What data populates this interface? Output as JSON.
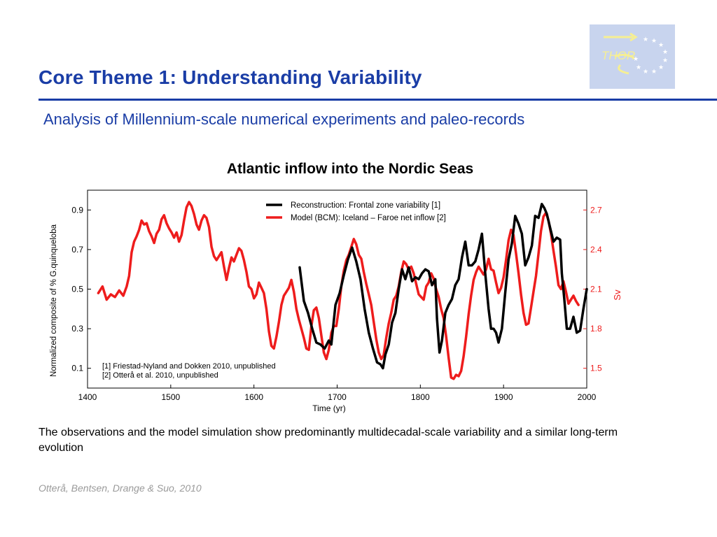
{
  "slide": {
    "title": "Core Theme 1: Understanding Variability",
    "subtitle": "Analysis of Millennium-scale numerical experiments and paleo-records",
    "logo_text": "THOR",
    "caption": "The observations and the model simulation show predominantly multidecadal-scale variability and a similar long-term evolution",
    "credit": "Otterå, Bentsen, Drange & Suo, 2010",
    "colors": {
      "title": "#1a3da6",
      "logo_bg": "#c8d4ee",
      "logo_ink": "#f6ef92",
      "credit": "#9a9a9a"
    }
  },
  "chart_data": {
    "type": "line",
    "title": "Atlantic inflow into the Nordic Seas",
    "xlabel": "Time (yr)",
    "ylabel": "Normalized composite of % G.quinqueloba",
    "y2label": "Sv",
    "xlim": [
      1400,
      2000
    ],
    "ylim": [
      0,
      1.0
    ],
    "y2lim": [
      1.35,
      2.85
    ],
    "xticks": [
      "1400",
      "1500",
      "1600",
      "1700",
      "1800",
      "1900",
      "2000"
    ],
    "yticks": [
      "0.1",
      "0.3",
      "0.5",
      "0.7",
      "0.9"
    ],
    "y2ticks": [
      "1.5",
      "1.8",
      "2.1",
      "2.4",
      "2.7"
    ],
    "grid": false,
    "legend_position": "top-right",
    "references": [
      "[1] Friestad-Nyland and Dokken 2010, unpublished",
      "[2] Otterå et al. 2010, unpublished"
    ],
    "series": [
      {
        "name": "Reconstruction: Frontal zone variability [1]",
        "axis": "left",
        "color": "#000000",
        "x": [
          1655,
          1660,
          1665,
          1670,
          1675,
          1680,
          1685,
          1690,
          1693,
          1698,
          1703,
          1708,
          1713,
          1718,
          1723,
          1728,
          1733,
          1738,
          1743,
          1748,
          1752,
          1755,
          1758,
          1762,
          1766,
          1770,
          1774,
          1778,
          1782,
          1786,
          1790,
          1794,
          1798,
          1802,
          1806,
          1810,
          1814,
          1818,
          1820,
          1823,
          1826,
          1830,
          1834,
          1838,
          1842,
          1846,
          1850,
          1854,
          1858,
          1862,
          1866,
          1870,
          1874,
          1878,
          1882,
          1885,
          1888,
          1891,
          1894,
          1898,
          1902,
          1906,
          1910,
          1914,
          1918,
          1922,
          1926,
          1930,
          1934,
          1938,
          1942,
          1946,
          1949,
          1952,
          1956,
          1960,
          1964,
          1968,
          1970,
          1973,
          1976,
          1980,
          1984,
          1988,
          1992,
          1996,
          2000
        ],
        "values": [
          0.61,
          0.44,
          0.38,
          0.3,
          0.23,
          0.22,
          0.2,
          0.24,
          0.22,
          0.42,
          0.48,
          0.57,
          0.65,
          0.71,
          0.64,
          0.55,
          0.4,
          0.28,
          0.2,
          0.13,
          0.12,
          0.1,
          0.17,
          0.22,
          0.33,
          0.38,
          0.5,
          0.6,
          0.55,
          0.61,
          0.54,
          0.56,
          0.55,
          0.58,
          0.6,
          0.59,
          0.52,
          0.55,
          0.35,
          0.18,
          0.24,
          0.38,
          0.42,
          0.45,
          0.52,
          0.55,
          0.66,
          0.74,
          0.62,
          0.62,
          0.64,
          0.7,
          0.78,
          0.58,
          0.4,
          0.3,
          0.3,
          0.28,
          0.23,
          0.3,
          0.48,
          0.65,
          0.73,
          0.87,
          0.83,
          0.78,
          0.62,
          0.66,
          0.72,
          0.87,
          0.86,
          0.93,
          0.91,
          0.88,
          0.81,
          0.74,
          0.76,
          0.75,
          0.58,
          0.45,
          0.3,
          0.3,
          0.36,
          0.28,
          0.29,
          0.4,
          0.5
        ]
      },
      {
        "name": "Model (BCM): Iceland – Faroe net inflow [2]",
        "axis": "right",
        "color": "#ee1c1c",
        "x": [
          1413,
          1418,
          1423,
          1428,
          1433,
          1438,
          1443,
          1447,
          1450,
          1453,
          1456,
          1459,
          1462,
          1465,
          1468,
          1471,
          1474,
          1477,
          1480,
          1483,
          1486,
          1489,
          1492,
          1495,
          1498,
          1501,
          1504,
          1507,
          1510,
          1513,
          1516,
          1519,
          1522,
          1525,
          1528,
          1531,
          1534,
          1537,
          1540,
          1543,
          1546,
          1549,
          1552,
          1555,
          1558,
          1561,
          1564,
          1567,
          1570,
          1573,
          1576,
          1579,
          1582,
          1585,
          1588,
          1591,
          1594,
          1597,
          1600,
          1603,
          1606,
          1609,
          1612,
          1615,
          1618,
          1621,
          1624,
          1627,
          1630,
          1633,
          1636,
          1639,
          1642,
          1645,
          1648,
          1651,
          1654,
          1657,
          1660,
          1663,
          1666,
          1669,
          1672,
          1675,
          1678,
          1681,
          1684,
          1687,
          1690,
          1693,
          1696,
          1699,
          1702,
          1705,
          1708,
          1711,
          1714,
          1717,
          1720,
          1723,
          1726,
          1729,
          1732,
          1735,
          1738,
          1741,
          1744,
          1747,
          1750,
          1753,
          1756,
          1759,
          1762,
          1765,
          1768,
          1771,
          1774,
          1777,
          1780,
          1783,
          1786,
          1789,
          1792,
          1795,
          1798,
          1801,
          1804,
          1807,
          1810,
          1813,
          1816,
          1819,
          1822,
          1825,
          1828,
          1831,
          1834,
          1837,
          1840,
          1843,
          1846,
          1849,
          1852,
          1855,
          1858,
          1861,
          1864,
          1867,
          1870,
          1873,
          1876,
          1879,
          1882,
          1885,
          1888,
          1891,
          1894,
          1897,
          1900,
          1903,
          1906,
          1909,
          1912,
          1915,
          1918,
          1921,
          1924,
          1927,
          1930,
          1933,
          1936,
          1939,
          1942,
          1945,
          1948,
          1951,
          1954,
          1957,
          1960,
          1963,
          1966,
          1969,
          1972,
          1975,
          1978,
          1981,
          1984,
          1987,
          1990
        ],
        "values": [
          2.07,
          2.12,
          2.02,
          2.06,
          2.04,
          2.09,
          2.05,
          2.12,
          2.2,
          2.38,
          2.46,
          2.5,
          2.55,
          2.62,
          2.59,
          2.6,
          2.54,
          2.5,
          2.45,
          2.52,
          2.55,
          2.63,
          2.66,
          2.6,
          2.56,
          2.53,
          2.49,
          2.53,
          2.46,
          2.51,
          2.62,
          2.72,
          2.76,
          2.73,
          2.67,
          2.59,
          2.55,
          2.62,
          2.66,
          2.64,
          2.57,
          2.42,
          2.35,
          2.32,
          2.35,
          2.38,
          2.27,
          2.17,
          2.26,
          2.34,
          2.31,
          2.36,
          2.41,
          2.39,
          2.32,
          2.23,
          2.12,
          2.1,
          2.03,
          2.06,
          2.15,
          2.11,
          2.07,
          1.95,
          1.78,
          1.67,
          1.65,
          1.74,
          1.85,
          1.98,
          2.05,
          2.08,
          2.11,
          2.17,
          2.08,
          1.95,
          1.87,
          1.8,
          1.73,
          1.65,
          1.64,
          1.82,
          1.94,
          1.96,
          1.88,
          1.75,
          1.62,
          1.57,
          1.64,
          1.77,
          1.82,
          1.82,
          1.95,
          2.12,
          2.24,
          2.32,
          2.36,
          2.42,
          2.48,
          2.44,
          2.36,
          2.33,
          2.23,
          2.14,
          2.06,
          1.98,
          1.85,
          1.72,
          1.62,
          1.57,
          1.6,
          1.73,
          1.84,
          1.92,
          2.02,
          2.05,
          2.12,
          2.23,
          2.31,
          2.29,
          2.25,
          2.27,
          2.22,
          2.14,
          2.06,
          2.04,
          2.02,
          2.12,
          2.15,
          2.22,
          2.18,
          2.1,
          2.04,
          1.95,
          1.88,
          1.74,
          1.58,
          1.43,
          1.42,
          1.45,
          1.44,
          1.48,
          1.59,
          1.74,
          1.91,
          2.05,
          2.17,
          2.23,
          2.27,
          2.24,
          2.21,
          2.25,
          2.33,
          2.25,
          2.24,
          2.15,
          2.07,
          2.11,
          2.19,
          2.32,
          2.47,
          2.55,
          2.51,
          2.37,
          2.22,
          2.06,
          1.92,
          1.83,
          1.84,
          1.96,
          2.08,
          2.2,
          2.37,
          2.54,
          2.65,
          2.68,
          2.62,
          2.52,
          2.39,
          2.27,
          2.13,
          2.1,
          2.16,
          2.08,
          1.99,
          2.02,
          2.05,
          2.01,
          1.98
        ]
      }
    ]
  }
}
